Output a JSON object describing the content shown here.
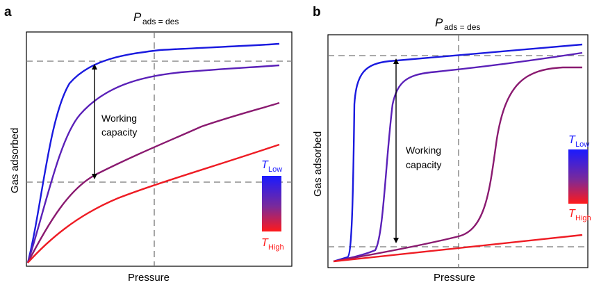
{
  "panel_a": {
    "letter": "a",
    "p_main": "P",
    "p_sub": "ads = des",
    "xlabel": "Pressure",
    "ylabel": "Gas adsorbed",
    "annotation_line1": "Working",
    "annotation_line2": "capacity",
    "t_low_main": "T",
    "t_low_sub": "Low",
    "t_high_main": "T",
    "t_high_sub": "High"
  },
  "panel_b": {
    "letter": "b",
    "p_main": "P",
    "p_sub": "ads = des",
    "xlabel": "Pressure",
    "ylabel": "Gas adsorbed",
    "annotation_line1": "Working",
    "annotation_line2": "capacity",
    "t_low_main": "T",
    "t_low_sub": "Low",
    "t_high_main": "T",
    "t_high_sub": "High"
  },
  "colors": {
    "t_low": "#1a1aff",
    "t_high": "#ff1a1a",
    "curve_1": "#1a1adf",
    "curve_2": "#5a20b8",
    "curve_3": "#8a1a70",
    "curve_4": "#ee1c24",
    "dashed": "#777777"
  }
}
